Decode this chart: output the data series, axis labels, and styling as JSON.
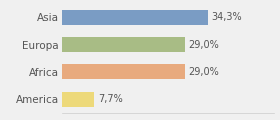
{
  "categories": [
    "Asia",
    "Europa",
    "Africa",
    "America"
  ],
  "values": [
    34.3,
    29.0,
    29.0,
    7.7
  ],
  "labels": [
    "34,3%",
    "29,0%",
    "29,0%",
    "7,7%"
  ],
  "bar_colors": [
    "#7a9cc4",
    "#a8bc85",
    "#e8aa7e",
    "#edd97a"
  ],
  "background_color": "#f0f0f0",
  "xlim": [
    0,
    50
  ],
  "bar_height": 0.55,
  "label_fontsize": 7,
  "tick_fontsize": 7.5
}
